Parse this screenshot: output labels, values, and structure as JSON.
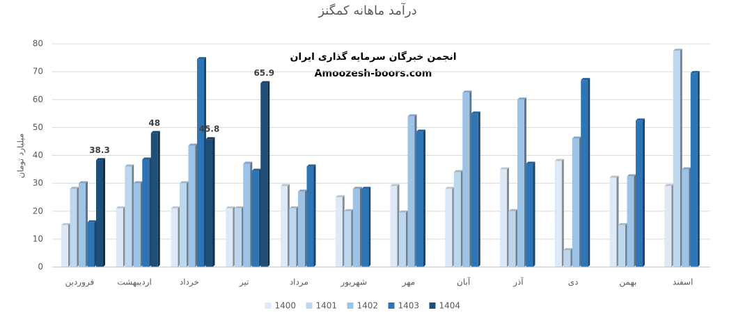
{
  "chart_data": {
    "type": "bar",
    "title": "درآمد ماهانه کمگنز",
    "y_label": "میلیارد تومان",
    "annotations": [
      "انجمن خبرگان سرمایه گذاری ایران",
      "Amoozesh-boors.com"
    ],
    "categories": [
      "فروردین",
      "اردیبهشت",
      "خرداد",
      "تیر",
      "مرداد",
      "شهریور",
      "مهر",
      "آبان",
      "آذر",
      "دی",
      "بهمن",
      "اسفند"
    ],
    "series": [
      {
        "name": "1400",
        "color": "#dde9f6",
        "values": [
          15,
          21,
          21,
          21,
          29,
          25,
          29,
          28,
          35,
          38,
          32,
          29
        ]
      },
      {
        "name": "1401",
        "color": "#bdd7ee",
        "values": [
          28,
          36,
          30,
          21,
          21,
          20,
          19.5,
          34,
          20,
          6,
          15,
          77.5
        ]
      },
      {
        "name": "1402",
        "color": "#9dc3e6",
        "values": [
          30,
          30,
          43.5,
          37,
          27,
          28,
          54,
          62.5,
          60,
          46,
          32.5,
          35
        ]
      },
      {
        "name": "1403",
        "color": "#2e75b6",
        "values": [
          16,
          38.5,
          74.5,
          34.5,
          36,
          28,
          48.5,
          55,
          37,
          67,
          52.5,
          69.5
        ]
      },
      {
        "name": "1404",
        "color": "#1f4e79",
        "values": [
          38.3,
          48,
          45.8,
          65.9,
          null,
          null,
          null,
          null,
          null,
          null,
          null,
          null
        ],
        "show_labels": true
      }
    ],
    "ylim": [
      0,
      80
    ],
    "yticks": [
      0,
      10,
      20,
      30,
      40,
      50,
      60,
      70,
      80
    ],
    "grid": true,
    "legend": "bottom"
  }
}
